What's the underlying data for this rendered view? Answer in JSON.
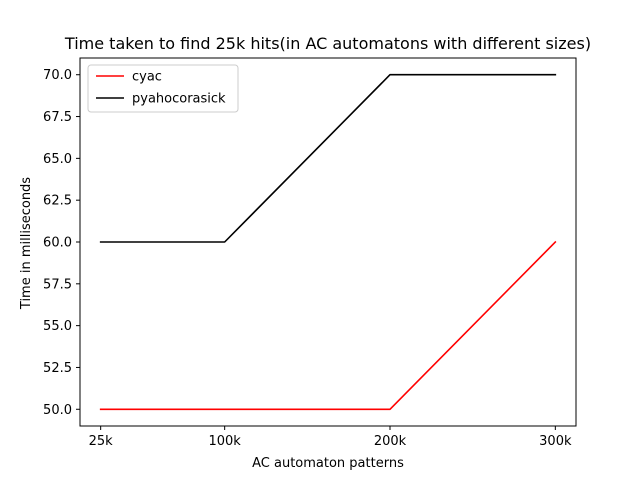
{
  "chart_data": {
    "type": "line",
    "title": "Time taken to find 25k hits(in AC automatons with different sizes)",
    "xlabel": "AC automaton patterns",
    "ylabel": "Time in milliseconds",
    "categories": [
      "25k",
      "100k",
      "200k",
      "300k"
    ],
    "x": [
      25,
      100,
      200,
      300
    ],
    "ylim": [
      49.0,
      71.0
    ],
    "yticks": [
      "50.0",
      "52.5",
      "55.0",
      "57.5",
      "60.0",
      "62.5",
      "65.0",
      "67.5",
      "70.0"
    ],
    "grid": false,
    "legend_position": "top-left",
    "series": [
      {
        "name": "cyac",
        "color": "#ff0000",
        "values": [
          50,
          50,
          50,
          60
        ]
      },
      {
        "name": "pyahocorasick",
        "color": "#000000",
        "values": [
          60,
          60,
          70,
          70
        ]
      }
    ]
  }
}
